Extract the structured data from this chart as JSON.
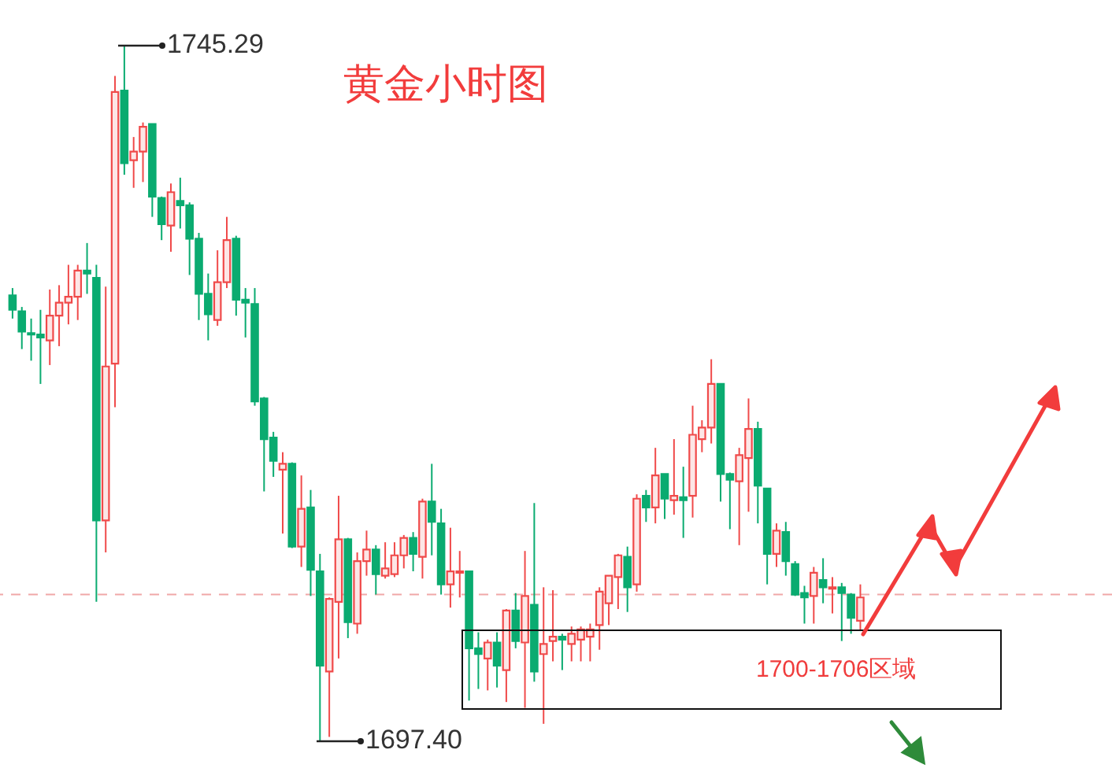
{
  "chart_data": {
    "type": "candlestick",
    "title": "黄金小时图",
    "categories": [
      null,
      null,
      null,
      null,
      null,
      null,
      null,
      null,
      null,
      null,
      null,
      null,
      null,
      null,
      null,
      null,
      null,
      null,
      null,
      null,
      null,
      null,
      null,
      null,
      null,
      null,
      null,
      null,
      null,
      null,
      null,
      null,
      null,
      null,
      null,
      null,
      null,
      null,
      null,
      null,
      null,
      null,
      null,
      null,
      null,
      null,
      null,
      null,
      null,
      null,
      null,
      null,
      null,
      null,
      null,
      null,
      null,
      null,
      null,
      null,
      null,
      null,
      null,
      null,
      null,
      null,
      null,
      null,
      null,
      null,
      null,
      null,
      null,
      null,
      null,
      null,
      null,
      null,
      null,
      null,
      null,
      null,
      null,
      null,
      null,
      null,
      null,
      null,
      null,
      null,
      null,
      null
    ],
    "ohlc": [
      [
        1728.1,
        1728.6,
        1726.5,
        1727.1
      ],
      [
        1727.0,
        1727.3,
        1724.4,
        1725.6
      ],
      [
        1725.5,
        1726.5,
        1723.6,
        1725.4
      ],
      [
        1725.4,
        1727.1,
        1722.0,
        1725.2
      ],
      [
        1725.0,
        1728.5,
        1723.3,
        1726.7
      ],
      [
        1726.7,
        1728.8,
        1724.6,
        1727.6
      ],
      [
        1727.6,
        1730.2,
        1726.1,
        1728.0
      ],
      [
        1728.0,
        1730.2,
        1726.4,
        1729.8
      ],
      [
        1729.8,
        1731.7,
        1728.2,
        1729.6
      ],
      [
        1729.3,
        1730.2,
        1707.0,
        1712.6
      ],
      [
        1712.6,
        1728.7,
        1710.4,
        1723.2
      ],
      [
        1723.4,
        1743.2,
        1720.4,
        1742.1
      ],
      [
        1742.2,
        1745.29,
        1736.4,
        1737.2
      ],
      [
        1737.4,
        1739.0,
        1735.5,
        1738.0
      ],
      [
        1738.0,
        1740.0,
        1735.9,
        1739.7
      ],
      [
        1739.9,
        1739.9,
        1733.5,
        1734.9
      ],
      [
        1734.8,
        1734.9,
        1731.9,
        1733.0
      ],
      [
        1732.9,
        1735.8,
        1731.1,
        1735.2
      ],
      [
        1734.6,
        1736.2,
        1732.7,
        1734.3
      ],
      [
        1734.3,
        1734.5,
        1729.5,
        1732.0
      ],
      [
        1732.0,
        1732.4,
        1726.4,
        1728.2
      ],
      [
        1728.2,
        1729.6,
        1725.0,
        1726.8
      ],
      [
        1726.4,
        1731.2,
        1726.0,
        1729.0
      ],
      [
        1729.0,
        1733.5,
        1728.6,
        1731.9
      ],
      [
        1732.0,
        1732.2,
        1726.7,
        1727.8
      ],
      [
        1727.8,
        1728.6,
        1725.2,
        1727.6
      ],
      [
        1727.5,
        1728.6,
        1720.5,
        1720.8
      ],
      [
        1721.0,
        1721.1,
        1714.6,
        1718.2
      ],
      [
        1718.3,
        1718.7,
        1715.6,
        1716.7
      ],
      [
        1716.1,
        1717.3,
        1711.7,
        1716.5
      ],
      [
        1716.5,
        1716.6,
        1710.7,
        1710.8
      ],
      [
        1710.8,
        1715.7,
        1709.4,
        1713.4
      ],
      [
        1713.5,
        1714.7,
        1707.4,
        1709.2
      ],
      [
        1709.1,
        1710.3,
        1697.4,
        1702.6
      ],
      [
        1702.2,
        1707.3,
        1697.7,
        1707.2
      ],
      [
        1707.0,
        1714.3,
        1703.1,
        1711.3
      ],
      [
        1711.3,
        1711.4,
        1704.5,
        1705.6
      ],
      [
        1705.5,
        1710.4,
        1704.8,
        1709.8
      ],
      [
        1709.8,
        1711.9,
        1708.8,
        1710.6
      ],
      [
        1710.6,
        1710.9,
        1707.5,
        1708.9
      ],
      [
        1708.8,
        1711.1,
        1708.6,
        1709.3
      ],
      [
        1708.9,
        1711.1,
        1708.7,
        1710.2
      ],
      [
        1710.2,
        1711.6,
        1709.3,
        1711.4
      ],
      [
        1711.4,
        1711.8,
        1709.1,
        1710.3
      ],
      [
        1710.1,
        1714.1,
        1708.6,
        1713.9
      ],
      [
        1713.9,
        1716.5,
        1710.2,
        1712.5
      ],
      [
        1712.4,
        1713.4,
        1707.5,
        1708.2
      ],
      [
        1708.2,
        1712.1,
        1706.6,
        1709.1
      ],
      [
        1709.0,
        1710.5,
        1707.3,
        1709.1
      ],
      [
        1709.1,
        1709.1,
        1700.2,
        1703.8
      ],
      [
        1703.8,
        1704.9,
        1701.0,
        1703.4
      ],
      [
        1703.1,
        1704.4,
        1700.9,
        1704.2
      ],
      [
        1704.2,
        1704.9,
        1701.1,
        1702.6
      ],
      [
        1702.3,
        1706.5,
        1700.1,
        1706.4
      ],
      [
        1706.4,
        1707.6,
        1703.8,
        1704.3
      ],
      [
        1704.2,
        1710.5,
        1699.7,
        1707.4
      ],
      [
        1706.8,
        1713.8,
        1701.5,
        1702.2
      ],
      [
        1703.4,
        1708.0,
        1698.6,
        1704.1
      ],
      [
        1704.3,
        1707.8,
        1702.9,
        1704.6
      ],
      [
        1704.6,
        1704.8,
        1702.3,
        1704.4
      ],
      [
        1704.1,
        1705.3,
        1702.9,
        1704.8
      ],
      [
        1704.4,
        1705.3,
        1702.9,
        1705.1
      ],
      [
        1704.6,
        1705.5,
        1702.9,
        1705.1
      ],
      [
        1705.4,
        1708.0,
        1703.7,
        1707.7
      ],
      [
        1706.9,
        1708.8,
        1705.4,
        1708.8
      ],
      [
        1708.7,
        1710.3,
        1706.5,
        1710.2
      ],
      [
        1710.1,
        1710.8,
        1706.3,
        1708.0
      ],
      [
        1708.2,
        1714.4,
        1707.7,
        1714.1
      ],
      [
        1714.3,
        1714.7,
        1712.5,
        1713.5
      ],
      [
        1713.5,
        1717.6,
        1712.4,
        1715.7
      ],
      [
        1715.8,
        1715.8,
        1712.7,
        1714.1
      ],
      [
        1714.0,
        1718.2,
        1713.0,
        1714.3
      ],
      [
        1714.2,
        1716.3,
        1711.4,
        1714.0
      ],
      [
        1714.3,
        1720.5,
        1712.8,
        1718.5
      ],
      [
        1718.2,
        1719.5,
        1717.3,
        1719.0
      ],
      [
        1719.0,
        1723.7,
        1717.9,
        1722.0
      ],
      [
        1722.0,
        1722.0,
        1713.9,
        1715.8
      ],
      [
        1715.8,
        1715.9,
        1712.0,
        1715.4
      ],
      [
        1715.3,
        1717.6,
        1710.9,
        1717.1
      ],
      [
        1716.9,
        1721.0,
        1713.2,
        1718.9
      ],
      [
        1718.9,
        1719.4,
        1712.4,
        1715.0
      ],
      [
        1714.8,
        1714.8,
        1708.2,
        1710.3
      ],
      [
        1710.3,
        1712.4,
        1709.4,
        1711.9
      ],
      [
        1711.8,
        1712.5,
        1708.8,
        1709.8
      ],
      [
        1709.6,
        1709.8,
        1707.4,
        1707.5
      ],
      [
        1707.6,
        1708.1,
        1705.5,
        1707.3
      ],
      [
        1707.4,
        1709.4,
        1705.5,
        1709.0
      ],
      [
        1708.5,
        1710.0,
        1706.9,
        1708.0
      ],
      [
        1707.9,
        1708.7,
        1706.2,
        1708.0
      ],
      [
        1708.0,
        1708.3,
        1704.3,
        1707.6
      ],
      [
        1707.5,
        1707.6,
        1704.8,
        1705.9
      ],
      [
        1705.7,
        1708.2,
        1705.0,
        1707.3
      ]
    ],
    "annotations": [
      "1745.29",
      "1697.40",
      "1700-1706区域"
    ],
    "ref_lines": [
      {
        "axis": "y",
        "value": 1707.5,
        "color": "#f0a8a8",
        "line_style": "dashed"
      }
    ]
  }
}
